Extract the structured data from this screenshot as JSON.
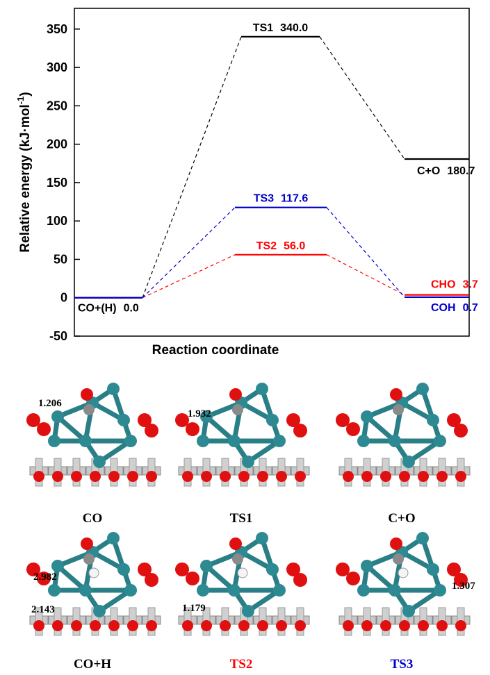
{
  "chart_data": {
    "type": "energy-profile",
    "ylabel": "Relative energy (kJ·mol",
    "ylabel_sup": "-1",
    "ylabel_end": ")",
    "xlabel": "Reaction coordinate",
    "ylim": [
      -50,
      377
    ],
    "yticks": [
      -50,
      0,
      50,
      100,
      150,
      200,
      250,
      300,
      350
    ],
    "series": [
      {
        "color": "#000000",
        "labels": [
          "CO+(H)",
          "TS1",
          "C+O"
        ],
        "values": [
          0,
          340,
          180.7
        ],
        "value_labels": [
          "0.0",
          "340.0",
          "180.7"
        ]
      },
      {
        "color": "#ff0000",
        "labels": [
          null,
          "TS2",
          "CHO"
        ],
        "values": [
          0,
          56,
          3.7
        ],
        "value_labels": [
          null,
          "56.0",
          "3.7"
        ]
      },
      {
        "color": "#0000cc",
        "labels": [
          null,
          "TS3",
          "COH"
        ],
        "values": [
          0,
          117.6,
          0.7
        ],
        "value_labels": [
          null,
          "117.6",
          "0.7"
        ]
      }
    ]
  },
  "structures": [
    {
      "label": "CO",
      "distances": [
        1.206
      ]
    },
    {
      "label": "TS1",
      "distances": [
        1.932
      ]
    },
    {
      "label": "C+O",
      "distances": []
    },
    {
      "label": "CO+H",
      "distances": [
        2.982,
        2.143
      ]
    },
    {
      "label": "TS2",
      "distances": [
        1.179
      ]
    },
    {
      "label": "TS3",
      "distances": [
        1.307
      ]
    }
  ]
}
